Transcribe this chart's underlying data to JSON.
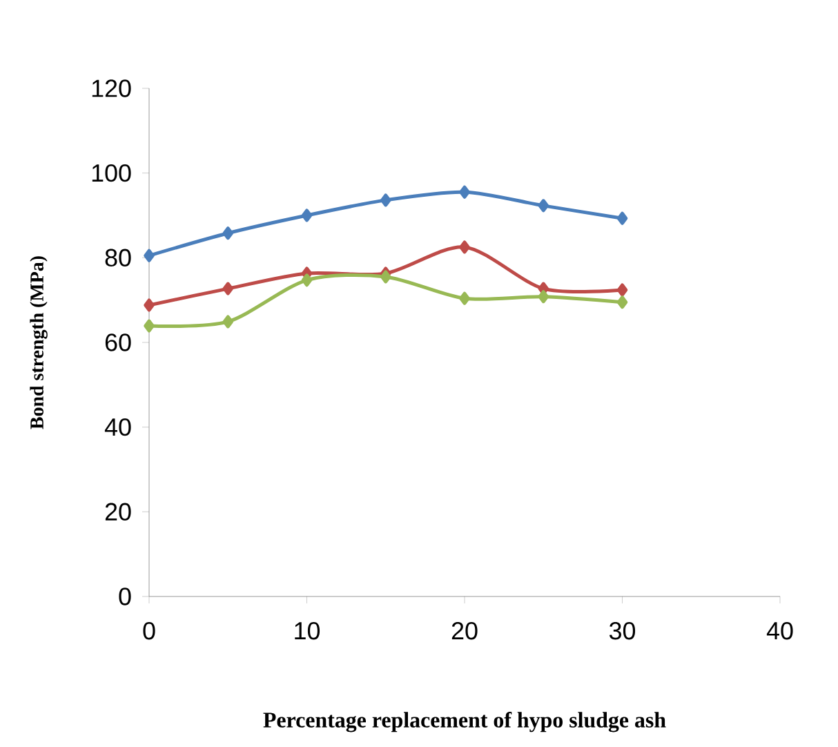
{
  "chart_data": {
    "type": "line",
    "xlabel": "Percentage replacement of hypo sludge ash",
    "ylabel": "Bond strength (MPa)",
    "x": [
      0,
      5,
      10,
      15,
      20,
      25,
      30
    ],
    "series": [
      {
        "color": "#4a7ebb",
        "values": [
          80.5,
          85.8,
          90,
          93.6,
          95.5,
          92.3,
          89.3
        ]
      },
      {
        "color": "#be4b48",
        "values": [
          68.8,
          72.7,
          76.3,
          76.3,
          82.5,
          72.7,
          72.4
        ]
      },
      {
        "color": "#98b954",
        "values": [
          63.9,
          64.9,
          74.7,
          75.5,
          70.4,
          70.8,
          69.5
        ]
      }
    ],
    "xlim": [
      0,
      40
    ],
    "xticks": [
      0,
      10,
      20,
      30,
      40
    ],
    "ylim": [
      0,
      120
    ],
    "yticks": [
      0,
      20,
      40,
      60,
      80,
      100,
      120
    ],
    "grid": false,
    "marker": "diamond",
    "line_style": "solid"
  }
}
